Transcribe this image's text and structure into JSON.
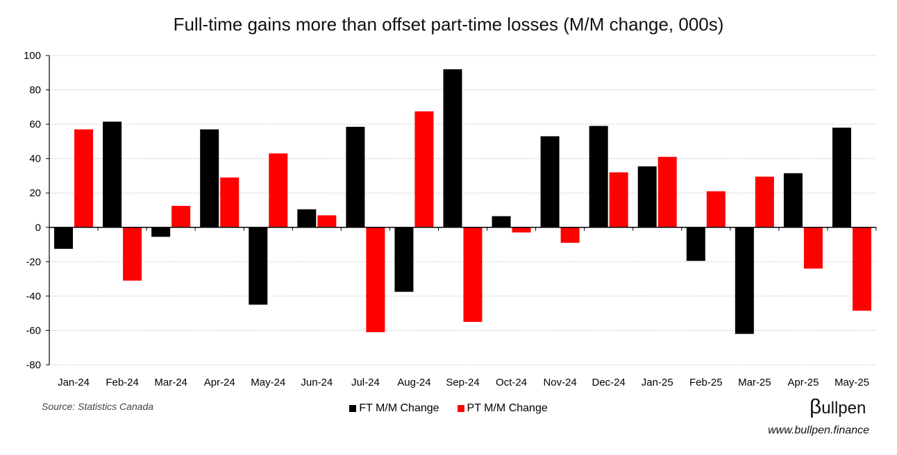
{
  "title": "Full-time gains more than offset part-time losses (M/M change, 000s)",
  "source": "Source: Statistics Canada",
  "brand": {
    "symbol": "β",
    "name": "ullpen",
    "website": "www.bullpen.finance"
  },
  "legend": [
    {
      "label": "FT M/M Change",
      "color": "#000000"
    },
    {
      "label": "PT M/M Change",
      "color": "#ff0000"
    }
  ],
  "chart_data": {
    "type": "bar",
    "title": "Full-time gains more than offset part-time losses (M/M change, 000s)",
    "xlabel": "",
    "ylabel": "",
    "ylim": [
      -80,
      100
    ],
    "yticks": [
      100,
      80,
      60,
      40,
      20,
      0,
      -20,
      -40,
      -60,
      -80
    ],
    "grid": true,
    "legend_position": "bottom",
    "categories": [
      "Jan-24",
      "Feb-24",
      "Mar-24",
      "Apr-24",
      "May-24",
      "Jun-24",
      "Jul-24",
      "Aug-24",
      "Sep-24",
      "Oct-24",
      "Nov-24",
      "Dec-24",
      "Jan-25",
      "Feb-25",
      "Mar-25",
      "Apr-25",
      "May-25"
    ],
    "series": [
      {
        "name": "FT M/M Change",
        "color": "#000000",
        "values": [
          -12.5,
          61.5,
          -5.5,
          57,
          -45,
          10.5,
          58.5,
          -37.5,
          92,
          6.5,
          53,
          59,
          35.5,
          -19.5,
          -62,
          31.5,
          58
        ]
      },
      {
        "name": "PT M/M Change",
        "color": "#ff0000",
        "values": [
          57,
          -31,
          12.5,
          29,
          43,
          7,
          -61,
          67.5,
          -55,
          -3,
          -9,
          32,
          41,
          21,
          29.5,
          -24,
          -48.5
        ]
      }
    ]
  }
}
